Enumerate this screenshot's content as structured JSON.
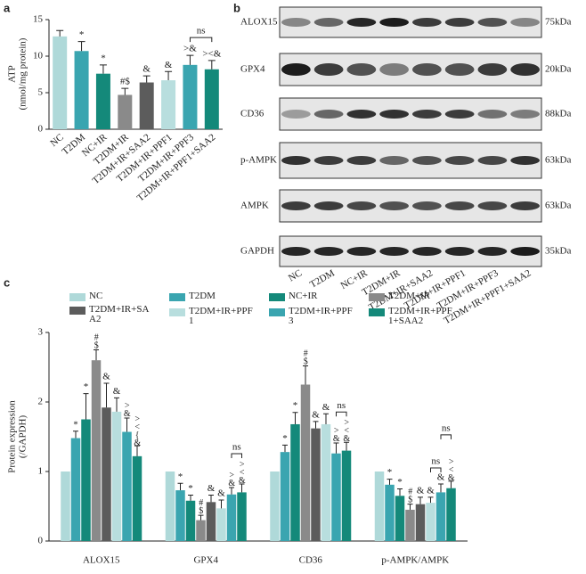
{
  "chart_data": [
    {
      "type": "bar",
      "panel_label": "a",
      "ylabel": [
        "ATP",
        "(nmol/mg protein)"
      ],
      "categories": [
        "NC",
        "T2DM",
        "NC+IR",
        "T2DM+IR",
        "T2DM+IR+SAA2",
        "T2DM+IR+PPF1",
        "T2DM+IR+PPF3",
        "T2DM+IR+PPF1+SAA2"
      ],
      "values": [
        12.7,
        10.7,
        7.6,
        4.7,
        6.4,
        6.7,
        8.8,
        8.2
      ],
      "errors": [
        0.8,
        1.3,
        1.2,
        0.9,
        0.9,
        1.2,
        1.3,
        1.2
      ],
      "colors": [
        "#afd9d9",
        "#3aa5b0",
        "#14897a",
        "#8a8a8a",
        "#5c5c5c",
        "#b8dede",
        "#3aa5b0",
        "#14897a"
      ],
      "annotations": [
        null,
        "*",
        "*",
        "#$",
        "&",
        "&",
        ">&",
        "><&"
      ],
      "brackets": [
        {
          "label": "ns",
          "from": 6,
          "to": 7
        }
      ],
      "ylim": [
        0,
        15
      ],
      "yticks": [
        0,
        5,
        10,
        15
      ]
    },
    {
      "type": "grouped_bar",
      "panel_label": "c",
      "ylabel": [
        "Protein expression",
        "(/GAPDH)"
      ],
      "categories": [
        "ALOX15",
        "GPX4",
        "CD36",
        "p-AMPK/AMPK"
      ],
      "annotation_layout": "vertical",
      "series": [
        {
          "name": "NC",
          "color": "#afd9d9",
          "values": [
            1.0,
            1.0,
            1.0,
            1.0
          ],
          "errors": [
            null,
            null,
            null,
            null
          ],
          "annotations": [
            null,
            null,
            null,
            null
          ]
        },
        {
          "name": "T2DM",
          "color": "#3aa5b0",
          "values": [
            1.48,
            0.73,
            1.28,
            0.81
          ],
          "errors": [
            0.1,
            0.1,
            0.1,
            0.08
          ],
          "annotations": [
            "*",
            "*",
            "*",
            "*"
          ]
        },
        {
          "name": "NC+IR",
          "color": "#14897a",
          "values": [
            1.75,
            0.58,
            1.68,
            0.65
          ],
          "errors": [
            0.37,
            0.08,
            0.17,
            0.1
          ],
          "annotations": [
            "*",
            "*",
            "*",
            "*"
          ]
        },
        {
          "name": "T2DM+IR",
          "color": "#8a8a8a",
          "values": [
            2.6,
            0.3,
            2.25,
            0.45
          ],
          "errors": [
            0.15,
            0.07,
            0.27,
            0.08
          ],
          "annotations": [
            "#$",
            "#$",
            "#$",
            "#$"
          ]
        },
        {
          "name": "T2DM+IR+SAA2",
          "color": "#5c5c5c",
          "values": [
            1.92,
            0.56,
            1.62,
            0.53
          ],
          "errors": [
            0.35,
            0.1,
            0.1,
            0.1
          ],
          "annotations": [
            "&",
            "&",
            "&",
            "&"
          ]
        },
        {
          "name": "T2DM+IR+PPF1",
          "color": "#b8dede",
          "values": [
            1.86,
            0.47,
            1.68,
            0.55
          ],
          "errors": [
            0.2,
            0.12,
            0.15,
            0.08
          ],
          "annotations": [
            "&",
            "&",
            "&",
            "&"
          ]
        },
        {
          "name": "T2DM+IR+PPF3",
          "color": "#3aa5b0",
          "values": [
            1.57,
            0.67,
            1.26,
            0.7
          ],
          "errors": [
            0.2,
            0.1,
            0.15,
            0.12
          ],
          "annotations": [
            ">&",
            ">&",
            ">&",
            "&"
          ]
        },
        {
          "name": "T2DM+IR+PPF1+SAA2",
          "color": "#14897a",
          "values": [
            1.22,
            0.7,
            1.3,
            0.76
          ],
          "errors": [
            0.15,
            0.12,
            0.12,
            0.1
          ],
          "annotations": [
            "><{&",
            "><&",
            "><&",
            "><&"
          ]
        }
      ],
      "brackets": [
        {
          "label": "ns",
          "category": 1,
          "from": 6,
          "to": 7
        },
        {
          "label": "ns",
          "category": 2,
          "from": 6,
          "to": 7
        },
        {
          "label": "ns",
          "category": 3,
          "from": 5,
          "to": 6
        },
        {
          "label": "ns",
          "category": 3,
          "from": 6,
          "to": 7
        }
      ],
      "ylim": [
        0,
        3
      ],
      "yticks": [
        0,
        1,
        2,
        3
      ]
    }
  ],
  "blot": {
    "panel_label": "b",
    "rows": [
      {
        "label": "ALOX15",
        "size": "75kDa"
      },
      {
        "label": "GPX4",
        "size": "20kDa"
      },
      {
        "label": "CD36",
        "size": "88kDa"
      },
      {
        "label": "p-AMPK",
        "size": "63kDa"
      },
      {
        "label": "AMPK",
        "size": "63kDa"
      },
      {
        "label": "GAPDH",
        "size": "35kDa"
      }
    ],
    "lanes": [
      "NC",
      "T2DM",
      "NC+IR",
      "T2DM+IR",
      "T2DM+IR+SAA2",
      "T2DM+IR+PPF1",
      "T2DM+IR+PPF3",
      "T2DM+IR+PPF1+SAA2"
    ]
  }
}
